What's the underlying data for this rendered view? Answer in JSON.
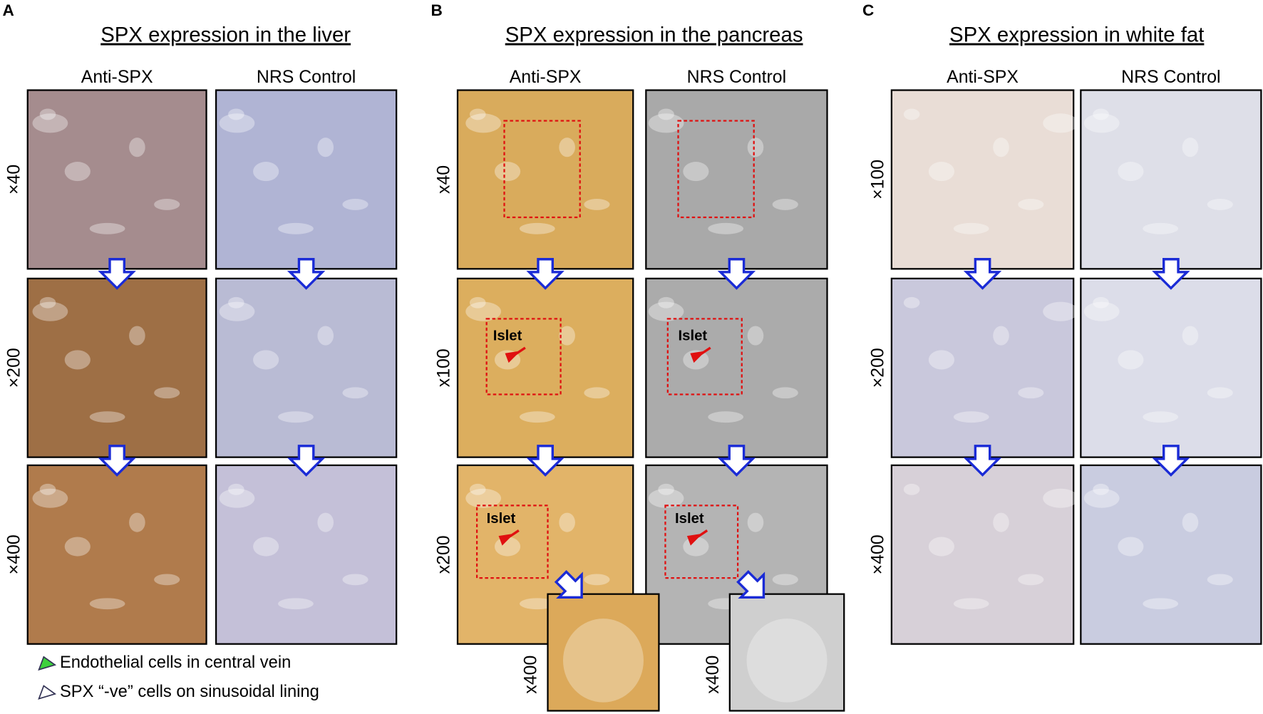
{
  "panels": [
    {
      "letter": "A",
      "title": "SPX expression in the liver",
      "columns": [
        "Anti-SPX",
        "NRS Control"
      ],
      "rows": [
        "×40",
        "×200",
        "×400"
      ]
    },
    {
      "letter": "B",
      "title": "SPX expression in the pancreas",
      "columns": [
        "Anti-SPX",
        "NRS Control"
      ],
      "rows": [
        "x40",
        "x100",
        "x200"
      ],
      "insets": [
        "x400",
        "x400"
      ],
      "islet_labels": [
        "Islet",
        "Islet",
        "Islet",
        "Islet"
      ]
    },
    {
      "letter": "C",
      "title": "SPX expression in white fat",
      "columns": [
        "Anti-SPX",
        "NRS Control"
      ],
      "rows": [
        "×100",
        "×200",
        "×400"
      ]
    }
  ],
  "legend": [
    "Endothelial cells in central vein",
    "SPX “-ve” cells on sinusoidal lining"
  ]
}
